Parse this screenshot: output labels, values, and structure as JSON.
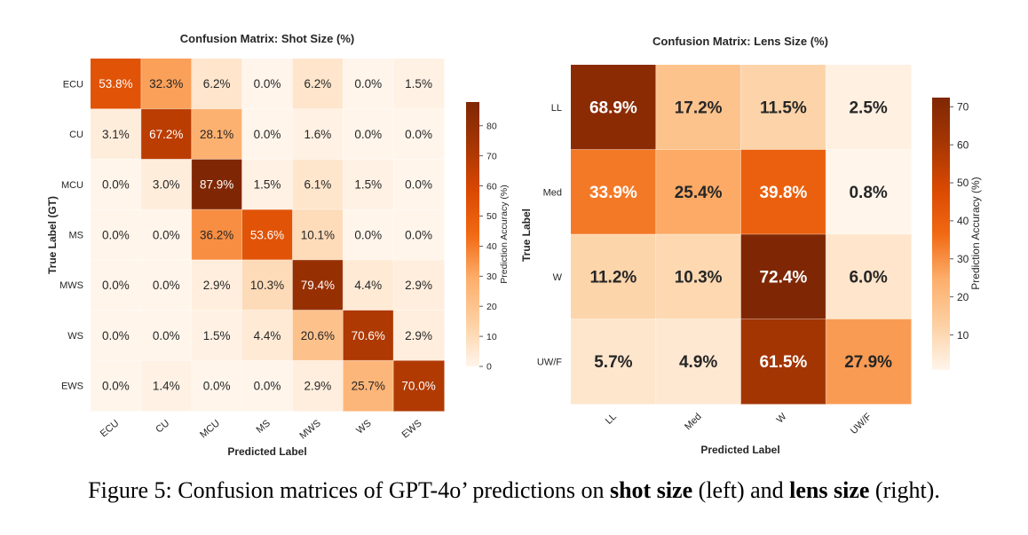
{
  "chart_data": [
    {
      "type": "heatmap",
      "title": "Confusion Matrix: Shot Size (%)",
      "xlabel": "Predicted Label",
      "ylabel": "True Label (GT)",
      "x_categories": [
        "ECU",
        "CU",
        "MCU",
        "MS",
        "MWS",
        "WS",
        "EWS"
      ],
      "y_categories": [
        "ECU",
        "CU",
        "MCU",
        "MS",
        "MWS",
        "WS",
        "EWS"
      ],
      "values": [
        [
          53.8,
          32.3,
          6.2,
          0.0,
          6.2,
          0.0,
          1.5
        ],
        [
          3.1,
          67.2,
          28.1,
          0.0,
          1.6,
          0.0,
          0.0
        ],
        [
          0.0,
          3.0,
          87.9,
          1.5,
          6.1,
          1.5,
          0.0
        ],
        [
          0.0,
          0.0,
          36.2,
          53.6,
          10.1,
          0.0,
          0.0
        ],
        [
          0.0,
          0.0,
          2.9,
          10.3,
          79.4,
          4.4,
          2.9
        ],
        [
          0.0,
          0.0,
          1.5,
          4.4,
          20.6,
          70.6,
          2.9
        ],
        [
          0.0,
          1.4,
          0.0,
          0.0,
          2.9,
          25.7,
          70.0
        ]
      ],
      "value_suffix": "%",
      "bold_values": false,
      "colorbar": {
        "label": "Prediction Accuracy (%)",
        "range": [
          0,
          87.9
        ],
        "ticks": [
          0,
          10,
          20,
          30,
          40,
          50,
          60,
          70,
          80
        ]
      },
      "colormap": [
        "#fff5eb",
        "#fdd0a2",
        "#fdae6b",
        "#f16913",
        "#d94801",
        "#a63603",
        "#7f2704"
      ]
    },
    {
      "type": "heatmap",
      "title": "Confusion Matrix: Lens Size (%)",
      "xlabel": "Predicted Label",
      "ylabel": "True Label",
      "x_categories": [
        "LL",
        "Med",
        "W",
        "UW/F"
      ],
      "y_categories": [
        "LL",
        "Med",
        "W",
        "UW/F"
      ],
      "values": [
        [
          68.9,
          17.2,
          11.5,
          2.5
        ],
        [
          33.9,
          25.4,
          39.8,
          0.8
        ],
        [
          11.2,
          10.3,
          72.4,
          6.0
        ],
        [
          5.7,
          4.9,
          61.5,
          27.9
        ]
      ],
      "value_suffix": "%",
      "bold_values": true,
      "colorbar": {
        "label": "Prediction Accuracy (%)",
        "range": [
          0.8,
          72.4
        ],
        "ticks": [
          10,
          20,
          30,
          40,
          50,
          60,
          70
        ]
      },
      "colormap": [
        "#fff5eb",
        "#fdd0a2",
        "#fdae6b",
        "#f16913",
        "#d94801",
        "#a63603",
        "#7f2704"
      ]
    }
  ],
  "caption": {
    "prefix": "Figure 5:",
    "text1": " Confusion matrices of GPT-4o’ predictions on ",
    "bold1": "shot size",
    "text2": " (left) and ",
    "bold2": "lens size",
    "text3": " (right)."
  }
}
